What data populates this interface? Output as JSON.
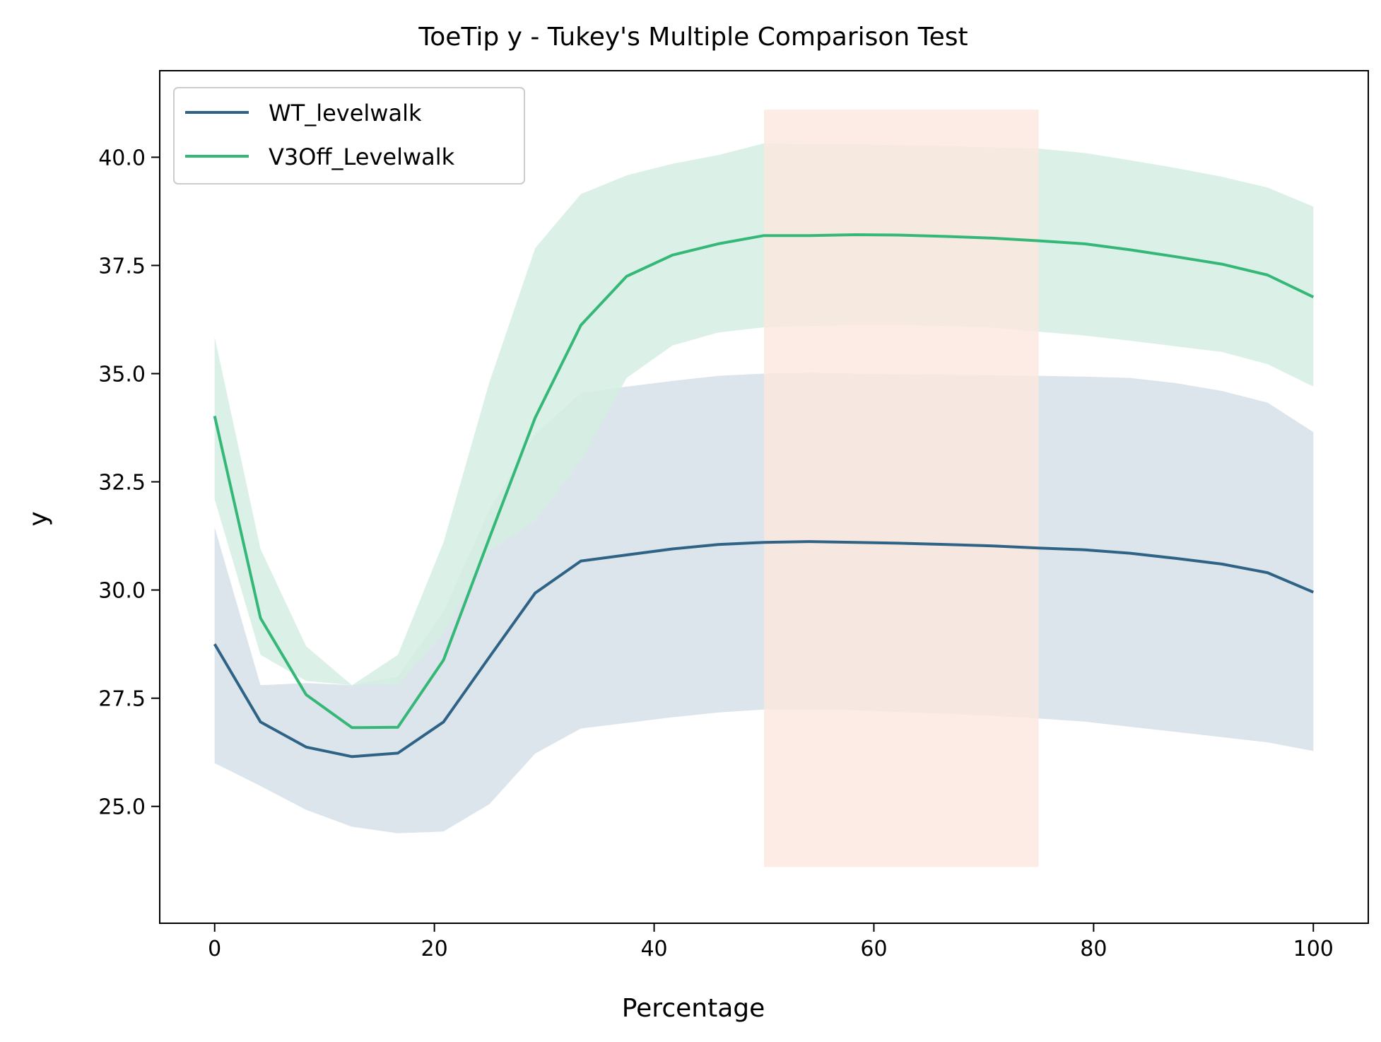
{
  "chart_data": {
    "type": "line",
    "title": "ToeTip y - Tukey's Multiple Comparison Test",
    "xlabel": "Percentage",
    "ylabel": "y",
    "xlim": [
      -5,
      105
    ],
    "ylim": [
      22.3,
      42.0
    ],
    "xticks": [
      0,
      20,
      40,
      60,
      80,
      100
    ],
    "xtick_labels": [
      "0",
      "20",
      "40",
      "60",
      "80",
      "100"
    ],
    "yticks": [
      25.0,
      27.5,
      30.0,
      32.5,
      35.0,
      37.5,
      40.0
    ],
    "ytick_labels": [
      "25.0",
      "27.5",
      "30.0",
      "32.5",
      "35.0",
      "37.5",
      "40.0"
    ],
    "grid": false,
    "legend": {
      "placement": "upper-left"
    },
    "x": [
      0,
      4.17,
      8.33,
      12.5,
      16.67,
      20.83,
      25,
      29.17,
      33.33,
      37.5,
      41.67,
      45.83,
      50,
      54.17,
      58.33,
      62.5,
      66.67,
      70.83,
      75,
      79.17,
      83.33,
      87.5,
      91.67,
      95.83,
      100
    ],
    "series": [
      {
        "name": "WT_levelwalk",
        "color": "#2e6386",
        "band_color": "#d6e0e8",
        "values": [
          28.75,
          26.95,
          26.37,
          26.15,
          26.23,
          26.95,
          28.45,
          29.93,
          30.67,
          30.81,
          30.95,
          31.05,
          31.1,
          31.12,
          31.1,
          31.08,
          31.05,
          31.02,
          30.97,
          30.93,
          30.85,
          30.73,
          30.6,
          30.4,
          29.95
        ],
        "lower": [
          26.0,
          25.47,
          24.92,
          24.53,
          24.38,
          24.42,
          25.05,
          26.22,
          26.8,
          26.93,
          27.06,
          27.17,
          27.24,
          27.24,
          27.22,
          27.18,
          27.14,
          27.09,
          27.03,
          26.96,
          26.84,
          26.72,
          26.6,
          26.48,
          26.28
        ],
        "upper": [
          31.45,
          27.8,
          27.85,
          27.8,
          28.0,
          29.5,
          31.85,
          33.6,
          34.55,
          34.7,
          34.83,
          34.95,
          35.0,
          35.02,
          35.0,
          34.98,
          34.97,
          34.96,
          34.95,
          34.93,
          34.9,
          34.78,
          34.6,
          34.33,
          33.65
        ]
      },
      {
        "name": "V3Off_Levelwalk",
        "color": "#35b778",
        "band_color": "#d5efe3",
        "values": [
          34.02,
          29.35,
          27.58,
          26.82,
          26.83,
          28.38,
          31.2,
          33.98,
          36.12,
          37.25,
          37.74,
          38.0,
          38.19,
          38.19,
          38.21,
          38.2,
          38.17,
          38.13,
          38.07,
          38.0,
          37.86,
          37.7,
          37.53,
          37.28,
          36.77
        ],
        "lower": [
          32.1,
          28.5,
          27.9,
          27.8,
          27.8,
          29.0,
          30.9,
          31.6,
          33.0,
          34.9,
          35.65,
          35.95,
          36.07,
          36.1,
          36.12,
          36.12,
          36.1,
          36.06,
          35.97,
          35.88,
          35.76,
          35.63,
          35.5,
          35.22,
          34.7
        ],
        "upper": [
          35.85,
          30.95,
          28.7,
          27.8,
          28.5,
          31.1,
          34.8,
          37.9,
          39.15,
          39.58,
          39.85,
          40.05,
          40.32,
          40.3,
          40.3,
          40.28,
          40.26,
          40.23,
          40.2,
          40.1,
          39.93,
          39.75,
          39.55,
          39.3,
          38.86
        ]
      }
    ],
    "highlight": {
      "x_start": 50,
      "x_end": 75,
      "y_start": 23.6,
      "y_end": 41.1,
      "color": "#fde7df"
    }
  }
}
